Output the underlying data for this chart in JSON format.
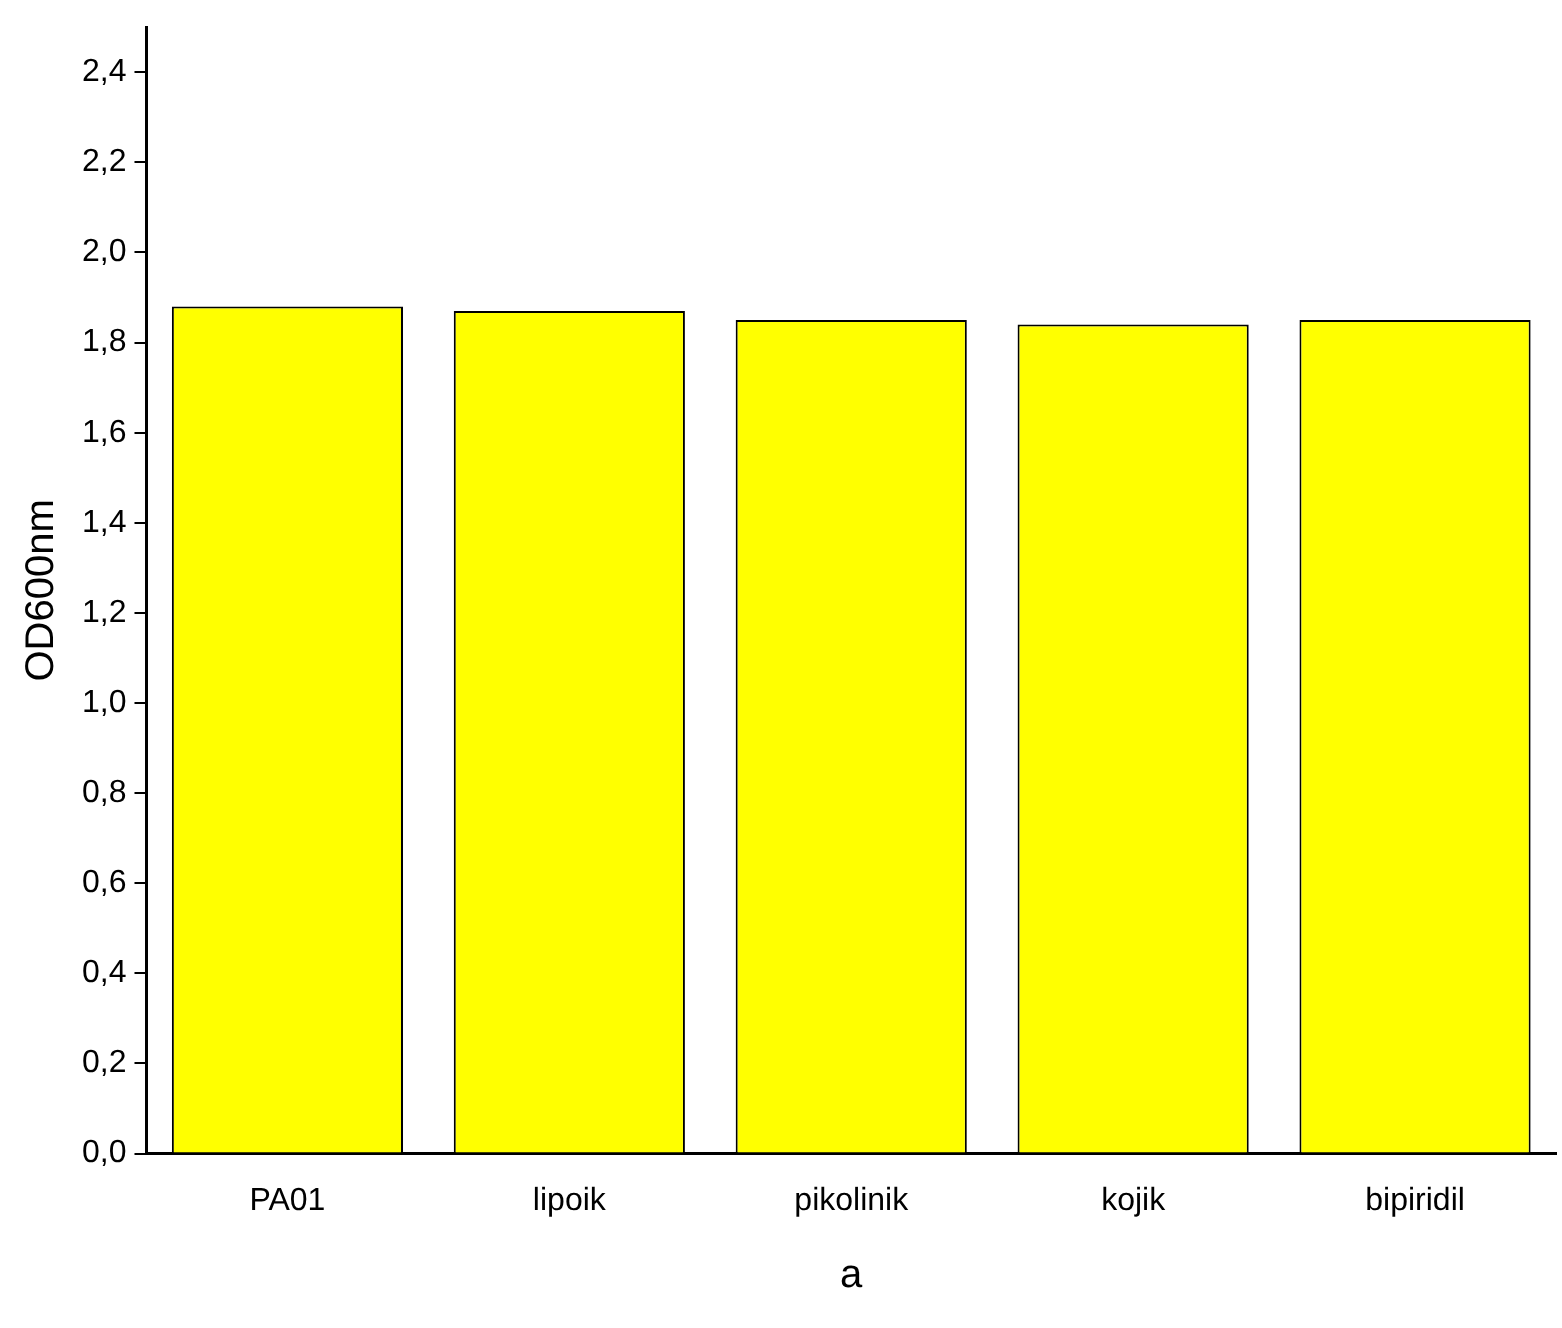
{
  "chart_data": {
    "type": "bar",
    "xlabel": "a",
    "ylabel": "OD600nm",
    "categories": [
      "PA01",
      "lipoik",
      "pikolinik",
      "kojik",
      "bipiridil"
    ],
    "values": [
      1.88,
      1.87,
      1.85,
      1.84,
      1.85
    ],
    "color": "#ffff00",
    "ylim": [
      0,
      2.5
    ],
    "yticks": [
      {
        "value": 0,
        "label": "0,0"
      },
      {
        "value": 0.2,
        "label": "0,2"
      },
      {
        "value": 0.4,
        "label": "0,4"
      },
      {
        "value": 0.6,
        "label": "0,6"
      },
      {
        "value": 0.8,
        "label": "0,8"
      },
      {
        "value": 1.0,
        "label": "1,0"
      },
      {
        "value": 1.2,
        "label": "1,2"
      },
      {
        "value": 1.4,
        "label": "1,4"
      },
      {
        "value": 1.6,
        "label": "1,6"
      },
      {
        "value": 1.8,
        "label": "1,8"
      },
      {
        "value": 2.0,
        "label": "2,0"
      },
      {
        "value": 2.2,
        "label": "2,2"
      },
      {
        "value": 2.4,
        "label": "2,4"
      }
    ],
    "grid": false,
    "legend": false
  }
}
